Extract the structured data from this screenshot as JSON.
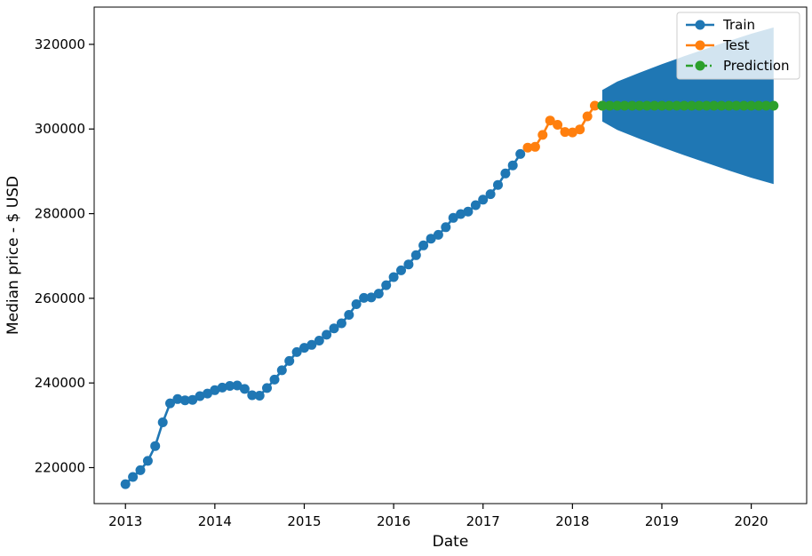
{
  "chart_data": {
    "type": "line",
    "xlabel": "Date",
    "ylabel": "Median price - $ USD",
    "xlim": [
      2012.65,
      2020.62
    ],
    "ylim": [
      211500,
      328800
    ],
    "x_ticks": [
      {
        "value": 2013,
        "label": "2013"
      },
      {
        "value": 2014,
        "label": "2014"
      },
      {
        "value": 2015,
        "label": "2015"
      },
      {
        "value": 2016,
        "label": "2016"
      },
      {
        "value": 2017,
        "label": "2017"
      },
      {
        "value": 2018,
        "label": "2018"
      },
      {
        "value": 2019,
        "label": "2019"
      },
      {
        "value": 2020,
        "label": "2020"
      }
    ],
    "y_ticks": [
      {
        "value": 220000,
        "label": "220000"
      },
      {
        "value": 240000,
        "label": "240000"
      },
      {
        "value": 260000,
        "label": "260000"
      },
      {
        "value": 280000,
        "label": "280000"
      },
      {
        "value": 300000,
        "label": "300000"
      },
      {
        "value": 320000,
        "label": "320000"
      }
    ],
    "legend_position": "top-right",
    "grid": false,
    "series": [
      {
        "name": "Train",
        "color": "#1f77b4",
        "line_style": "solid",
        "x": [
          2013.0,
          2013.083,
          2013.167,
          2013.25,
          2013.333,
          2013.417,
          2013.5,
          2013.583,
          2013.667,
          2013.75,
          2013.833,
          2013.917,
          2014.0,
          2014.083,
          2014.167,
          2014.25,
          2014.333,
          2014.417,
          2014.5,
          2014.583,
          2014.667,
          2014.75,
          2014.833,
          2014.917,
          2015.0,
          2015.083,
          2015.167,
          2015.25,
          2015.333,
          2015.417,
          2015.5,
          2015.583,
          2015.667,
          2015.75,
          2015.833,
          2015.917,
          2016.0,
          2016.083,
          2016.167,
          2016.25,
          2016.333,
          2016.417,
          2016.5,
          2016.583,
          2016.667,
          2016.75,
          2016.833,
          2016.917,
          2017.0,
          2017.083,
          2017.167,
          2017.25,
          2017.333,
          2017.417
        ],
        "values": [
          216100,
          217800,
          219400,
          221600,
          225100,
          230700,
          235200,
          236200,
          235900,
          236000,
          236900,
          237500,
          238300,
          238900,
          239300,
          239400,
          238600,
          237100,
          237000,
          238800,
          240800,
          243000,
          245200,
          247300,
          248300,
          249000,
          250000,
          251400,
          252900,
          254100,
          256100,
          258600,
          260100,
          260200,
          261100,
          263100,
          265000,
          266600,
          268000,
          270200,
          272500,
          274100,
          275000,
          276800,
          279000,
          279900,
          280500,
          282000,
          283300,
          284600,
          286800,
          289500,
          291400,
          294100
        ]
      },
      {
        "name": "Test",
        "color": "#ff7f0e",
        "line_style": "solid",
        "x": [
          2017.5,
          2017.583,
          2017.667,
          2017.75,
          2017.833,
          2017.917,
          2018.0,
          2018.083,
          2018.167,
          2018.25,
          2018.333
        ],
        "values": [
          295600,
          295800,
          298600,
          302000,
          301000,
          299300,
          299200,
          299900,
          303000,
          305500,
          305500
        ]
      },
      {
        "name": "Prediction",
        "color": "#2ca02c",
        "line_style": "dashdot",
        "x": [
          2018.333,
          2018.417,
          2018.5,
          2018.583,
          2018.667,
          2018.75,
          2018.833,
          2018.917,
          2019.0,
          2019.083,
          2019.167,
          2019.25,
          2019.333,
          2019.417,
          2019.5,
          2019.583,
          2019.667,
          2019.75,
          2019.833,
          2019.917,
          2020.0,
          2020.083,
          2020.167,
          2020.25
        ],
        "values": [
          305500,
          305500,
          305500,
          305500,
          305500,
          305500,
          305500,
          305500,
          305500,
          305500,
          305500,
          305500,
          305500,
          305500,
          305500,
          305500,
          305500,
          305500,
          305500,
          305500,
          305500,
          305500,
          305500,
          305500
        ]
      }
    ],
    "confidence_band": {
      "color": "#1f77b4",
      "x": [
        2018.333,
        2018.5,
        2018.75,
        2019.0,
        2019.25,
        2019.5,
        2019.75,
        2020.0,
        2020.25
      ],
      "upper": [
        309200,
        311200,
        313300,
        315300,
        317200,
        319000,
        320800,
        322500,
        324000
      ],
      "lower": [
        301800,
        299800,
        297700,
        295700,
        293800,
        292000,
        290200,
        288500,
        287000
      ]
    }
  }
}
